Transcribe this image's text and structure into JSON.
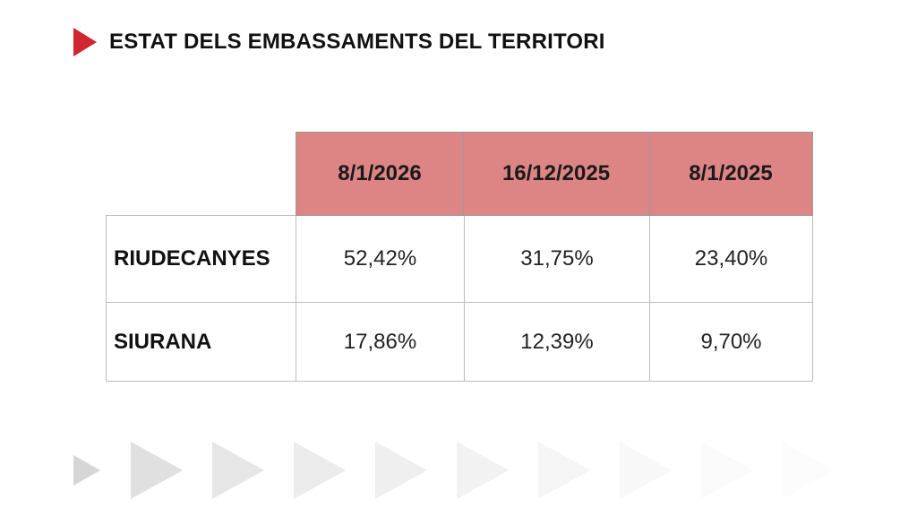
{
  "header": {
    "title": "ESTAT DELS EMBASSAMENTS DEL TERRITORI",
    "accent_color": "#d0262f",
    "icon": "play-triangle-icon"
  },
  "table": {
    "columns": [
      "8/1/2026",
      "16/12/2025",
      "8/1/2025"
    ],
    "header_color": "#dd8484",
    "rows": [
      {
        "name": "RIUDECANYES",
        "values": [
          "52,42%",
          "31,75%",
          "23,40%"
        ]
      },
      {
        "name": "SIURANA",
        "values": [
          "17,86%",
          "12,39%",
          "9,70%"
        ]
      }
    ]
  }
}
